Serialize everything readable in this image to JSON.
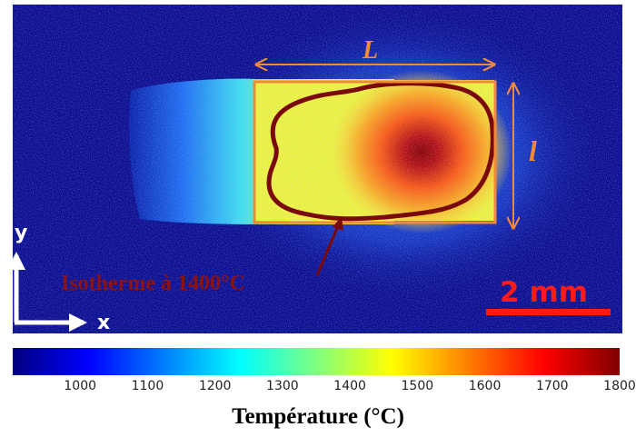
{
  "image": {
    "dimension_label_L": "L",
    "dimension_label_l": "l",
    "axis_y_label": "y",
    "axis_x_label": "x",
    "isotherm_label": "Isotherme à 1400°C",
    "scale_bar_label": "2 mm"
  },
  "colorbar": {
    "title": "Température (°C)",
    "ticks": [
      "1000",
      "1100",
      "1200",
      "1300",
      "1400",
      "1500",
      "1600",
      "1700",
      "1800"
    ],
    "min": 900,
    "max": 1800,
    "colormap": [
      "#00007f",
      "#0000ff",
      "#007fff",
      "#00ffff",
      "#7fff7f",
      "#ffff00",
      "#ff7f00",
      "#ff0000",
      "#7f0000"
    ]
  },
  "colors": {
    "background": "#0a0a8c",
    "isotherm": "#7a0a0a",
    "annotation_orange": "#f08a3a",
    "scale_bar": "#ff1a1a"
  }
}
